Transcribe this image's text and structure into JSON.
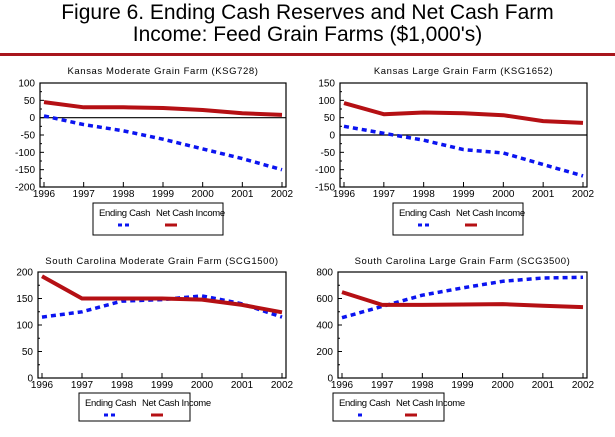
{
  "figure": {
    "title_line1": "Figure 6. Ending Cash Reserves and Net Cash Farm",
    "title_line2": "Income:  Feed Grain Farms ($1,000's)",
    "rule_color": "#a8161c"
  },
  "colors": {
    "ending_cash": "#0b14f0",
    "net_cash_income": "#b51014"
  },
  "chart_data": [
    {
      "type": "line",
      "title": "Kansas Moderate Grain Farm (KSG728)",
      "xlabel": "",
      "ylabel": "",
      "categories": [
        "1996",
        "1997",
        "1998",
        "1999",
        "2000",
        "2001",
        "2002"
      ],
      "x": [
        1996,
        1997,
        1998,
        1999,
        2000,
        2001,
        2002
      ],
      "yticks": [
        100,
        50,
        0,
        -50,
        -100,
        -150,
        -200
      ],
      "ylim": [
        -200,
        100
      ],
      "zero_line": true,
      "legend": {
        "position": "bottom",
        "entries": [
          "Ending Cash",
          "Net Cash Income"
        ]
      },
      "series": [
        {
          "name": "Ending Cash",
          "style": "dashed",
          "values": [
            5,
            -20,
            -38,
            -62,
            -90,
            -118,
            -150
          ]
        },
        {
          "name": "Net Cash Income",
          "style": "solid",
          "values": [
            45,
            30,
            30,
            28,
            22,
            13,
            8
          ]
        }
      ]
    },
    {
      "type": "line",
      "title": "Kansas Large Grain Farm (KSG1652)",
      "xlabel": "",
      "ylabel": "",
      "categories": [
        "1996",
        "1997",
        "1998",
        "1999",
        "2000",
        "2001",
        "2002"
      ],
      "x": [
        1996,
        1997,
        1998,
        1999,
        2000,
        2001,
        2002
      ],
      "yticks": [
        150,
        100,
        50,
        0,
        -50,
        -100,
        -150
      ],
      "ylim": [
        -150,
        150
      ],
      "zero_line": true,
      "legend": {
        "position": "bottom",
        "entries": [
          "Ending Cash",
          "Net Cash Income"
        ]
      },
      "series": [
        {
          "name": "Ending Cash",
          "style": "dashed",
          "values": [
            25,
            5,
            -15,
            -42,
            -52,
            -85,
            -118
          ]
        },
        {
          "name": "Net Cash Income",
          "style": "solid",
          "values": [
            92,
            60,
            65,
            63,
            57,
            40,
            35
          ]
        }
      ]
    },
    {
      "type": "line",
      "title": "South Carolina Moderate Grain Farm (SCG1500)",
      "xlabel": "",
      "ylabel": "",
      "categories": [
        "1996",
        "1997",
        "1998",
        "1999",
        "2000",
        "2001",
        "2002"
      ],
      "x": [
        1996,
        1997,
        1998,
        1999,
        2000,
        2001,
        2002
      ],
      "yticks": [
        200,
        150,
        100,
        50,
        0
      ],
      "ylim": [
        0,
        200
      ],
      "zero_line": false,
      "legend": {
        "position": "bottom",
        "entries": [
          "Ending Cash",
          "Net Cash Income"
        ]
      },
      "series": [
        {
          "name": "Ending Cash",
          "style": "dashed",
          "values": [
            115,
            125,
            145,
            148,
            155,
            140,
            115
          ]
        },
        {
          "name": "Net Cash Income",
          "style": "solid",
          "values": [
            192,
            150,
            150,
            150,
            148,
            138,
            124
          ]
        }
      ]
    },
    {
      "type": "line",
      "title": "South Carolina Large Grain Farm (SCG3500)",
      "xlabel": "",
      "ylabel": "",
      "categories": [
        "1996",
        "1997",
        "1998",
        "1999",
        "2000",
        "2001",
        "2002"
      ],
      "x": [
        1996,
        1997,
        1998,
        1999,
        2000,
        2001,
        2002
      ],
      "yticks": [
        800,
        600,
        400,
        200,
        0
      ],
      "ylim": [
        0,
        800
      ],
      "zero_line": false,
      "legend": {
        "position": "bottom",
        "entries": [
          "Ending Cash",
          "Net Cash Income"
        ]
      },
      "series": [
        {
          "name": "Ending Cash",
          "style": "dashed",
          "values": [
            455,
            540,
            625,
            680,
            730,
            755,
            760
          ]
        },
        {
          "name": "Net Cash Income",
          "style": "solid",
          "values": [
            648,
            552,
            552,
            555,
            558,
            545,
            535
          ]
        }
      ]
    }
  ]
}
